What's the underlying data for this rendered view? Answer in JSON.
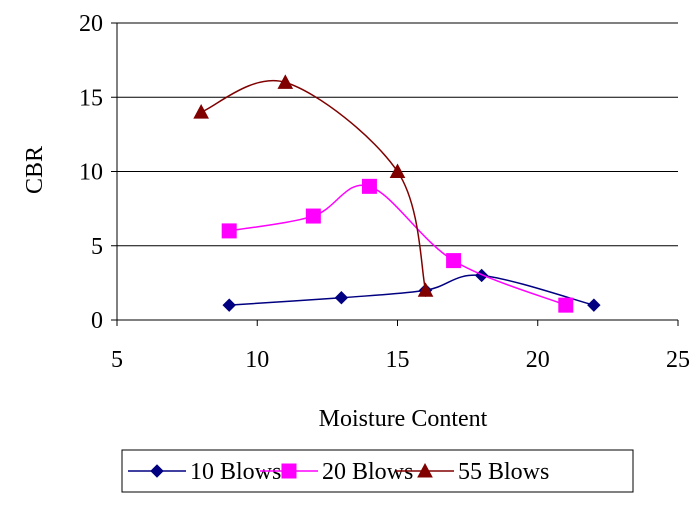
{
  "chart_data": {
    "type": "line",
    "smooth": true,
    "title": "",
    "xlabel": "Moisture Content",
    "ylabel": "CBR",
    "xlim": [
      5,
      25
    ],
    "ylim": [
      0,
      20
    ],
    "xticks": [
      5,
      10,
      15,
      20,
      25
    ],
    "yticks": [
      0,
      5,
      10,
      15,
      20
    ],
    "x_tick_labels": [
      "5",
      "10",
      "15",
      "20",
      "25"
    ],
    "y_tick_labels": [
      "0",
      "5",
      "10",
      "15",
      "20"
    ],
    "grid": "horizontal major gridlines",
    "legend_position": "bottom",
    "series": [
      {
        "name": "10 Blows",
        "color": "#000080",
        "marker": "diamond",
        "x": [
          9,
          13,
          16,
          18,
          22
        ],
        "y": [
          1,
          1.5,
          2,
          3,
          1
        ]
      },
      {
        "name": "20 Blows",
        "color": "#FF00FF",
        "marker": "square",
        "x": [
          9,
          12,
          14,
          17,
          21
        ],
        "y": [
          6,
          7,
          9,
          4,
          1
        ]
      },
      {
        "name": "55 Blows",
        "color": "#800000",
        "marker": "triangle",
        "x": [
          8,
          11,
          15,
          16
        ],
        "y": [
          14,
          16,
          10,
          2
        ]
      }
    ]
  }
}
